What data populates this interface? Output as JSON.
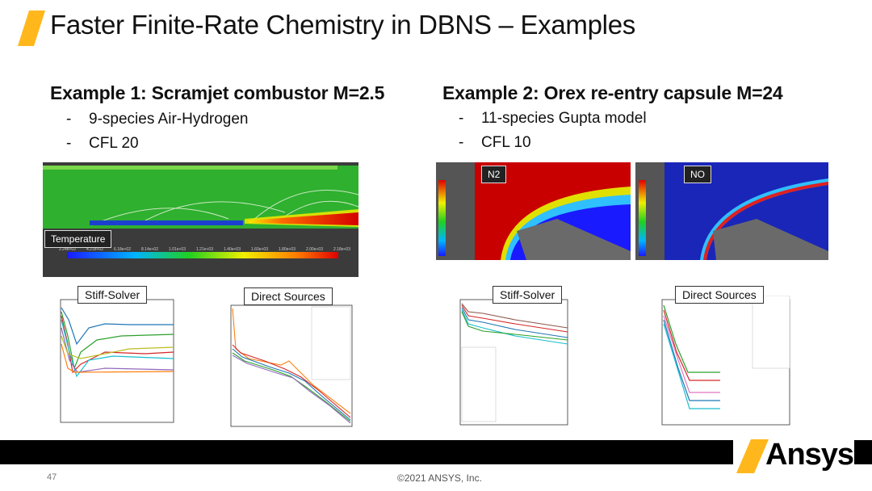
{
  "slide": {
    "title": "Faster Finite-Rate Chemistry in DBNS – Examples",
    "page_number": "47",
    "copyright": "©2021 ANSYS, Inc.",
    "logo_text": "Ansys",
    "accent_color": "#FFB71B"
  },
  "example1": {
    "heading": "Example 1: Scramjet combustor  M=2.5",
    "bullets": [
      "9-species Air-Hydrogen",
      "CFL 20"
    ],
    "contour_tag": "Temperature",
    "colorbar_ticks": [
      "2.24e+02",
      "4.21e+02",
      "6.18e+02",
      "8.14e+02",
      "1.01e+03",
      "1.21e+03",
      "1.40e+03",
      "1.60e+03",
      "1.80e+03",
      "2.00e+03",
      "2.18e+03"
    ],
    "plot1_label": "Stiff-Solver",
    "plot2_label": "Direct Sources"
  },
  "example2": {
    "heading": "Example 2: Orex re-entry capsule M=24",
    "bullets": [
      "11-species Gupta model",
      "CFL 10"
    ],
    "contour_tag_1": "N2",
    "contour_tag_2": "NO",
    "plot1_label": "Stiff-Solver",
    "plot2_label": "Direct Sources"
  },
  "bullet_dash": "-"
}
